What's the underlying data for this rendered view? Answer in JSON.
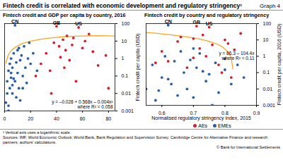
{
  "title": "Fintech credit is correlated with economic development and regulatory stringency¹",
  "graph_label": "Graph 4",
  "footnote": "¹ Vertical axis uses a logarithmic scale.",
  "sources": "Sources: IMF, World Economic Outlook; World Bank, Bank Regulation and Supervision Survey; Cambridge Centre for Alternative Finance and research partners; authors' calculations.",
  "copyright": "© Bank for International Settlements",
  "chart_data": [
    {
      "type": "scatter",
      "title": "Fintech credit and GDP per capita by country, 2016",
      "y_label": "Fintech credit per capita (USD)",
      "log": "y",
      "xlim": [
        0,
        85
      ],
      "xticks": [
        0,
        20,
        40,
        60,
        80
      ],
      "ylim": [
        0.001,
        100
      ],
      "yticks": [
        0.001,
        0.01,
        0.1,
        1,
        10,
        100
      ],
      "series": [
        {
          "name": "AEs",
          "color": "#d0202e",
          "marker": "circle",
          "x": [
            28,
            32,
            35,
            38,
            40,
            42,
            43,
            45,
            46,
            47,
            48,
            50,
            52,
            53,
            55,
            57,
            60,
            62,
            65,
            68,
            72,
            78,
            80,
            24,
            36
          ],
          "values": [
            0.5,
            2,
            0.2,
            8,
            70,
            5,
            1.2,
            12,
            0.3,
            3,
            20,
            0.8,
            6,
            15,
            0.05,
            60,
            4,
            10,
            25,
            2.5,
            0.4,
            1.5,
            0.02,
            0.1,
            0.01
          ]
        },
        {
          "name": "EMEs",
          "color": "#2a5da8",
          "marker": "circle",
          "x": [
            1,
            2,
            2,
            3,
            3,
            4,
            4,
            5,
            5,
            6,
            6,
            7,
            8,
            8,
            9,
            10,
            10,
            11,
            12,
            12,
            13,
            14,
            15,
            16,
            17,
            18,
            19,
            20,
            22,
            25,
            3,
            6,
            9,
            11,
            14,
            5,
            7
          ],
          "values": [
            0.003,
            0.01,
            0.05,
            0.002,
            0.2,
            0.02,
            0.5,
            0.08,
            1,
            0.01,
            0.3,
            2,
            80,
            0.05,
            0.6,
            0.15,
            3,
            0.02,
            0.8,
            0.004,
            1.5,
            0.1,
            5,
            0.3,
            0.04,
            1,
            8,
            0.5,
            2,
            0.2,
            0.001,
            0.03,
            0.006,
            4,
            0.02,
            0.15,
            0.07
          ]
        }
      ],
      "trend": {
        "type": "line",
        "color": "#f5a623",
        "x": [
          1,
          3,
          5,
          10,
          20,
          30,
          40,
          50,
          60,
          70,
          80,
          85
        ],
        "values": [
          0.536,
          1.64,
          2.71,
          5.25,
          9.73,
          13.41,
          16.29,
          18.37,
          19.65,
          20.13,
          19.81,
          19.33
        ]
      },
      "point_labels": [
        {
          "text": "CN",
          "x": 8,
          "y": 80
        },
        {
          "text": "GB",
          "x": 40,
          "y": 70
        },
        {
          "text": "US",
          "x": 57,
          "y": 60
        }
      ],
      "annotations": [
        "y = –0.028 + 0.568x – 0.004x²",
        "where R² = 0.058"
      ]
    },
    {
      "type": "scatter",
      "title": "Fintech credit by country and regulatory stringency",
      "x_label": "Normalised regulatory stringency index, 2015",
      "y_label": "Fintech credit per capita, 2016 (USD)",
      "log": "y",
      "legend": "bottom",
      "xlim": [
        0.55,
        0.9
      ],
      "xticks": [
        0.6,
        0.7,
        0.8,
        0.9
      ],
      "ylim": [
        0.001,
        100
      ],
      "yticks": [
        0.001,
        0.01,
        0.1,
        1,
        10,
        100
      ],
      "series": [
        {
          "name": "AEs",
          "color": "#d0202e",
          "marker": "circle",
          "x": [
            0.6,
            0.62,
            0.65,
            0.68,
            0.7,
            0.71,
            0.72,
            0.73,
            0.74,
            0.75,
            0.76,
            0.78,
            0.8,
            0.82,
            0.83,
            0.85,
            0.7,
            0.66,
            0.79,
            0.81,
            0.58
          ],
          "values": [
            2,
            0.5,
            8,
            0.2,
            12,
            70,
            3,
            20,
            1,
            60,
            5,
            0.3,
            10,
            0.05,
            2.5,
            25,
            0.8,
            15,
            0.1,
            6,
            0.4
          ]
        },
        {
          "name": "EMEs",
          "color": "#2a5da8",
          "marker": "circle",
          "x": [
            0.55,
            0.57,
            0.58,
            0.6,
            0.61,
            0.62,
            0.63,
            0.64,
            0.65,
            0.66,
            0.67,
            0.68,
            0.69,
            0.7,
            0.71,
            0.72,
            0.74,
            0.75,
            0.77,
            0.78,
            0.8,
            0.82,
            0.84,
            0.86,
            0.62,
            0.7,
            0.76,
            0.8,
            0.59,
            0.73
          ],
          "values": [
            0.01,
            0.3,
            0.002,
            0.05,
            1,
            80,
            0.02,
            0.5,
            0.004,
            2,
            0.1,
            0.01,
            0.6,
            0.003,
            0.2,
            1.5,
            0.03,
            0.08,
            0.4,
            0.006,
            0.15,
            0.02,
            0.3,
            0.05,
            0.04,
            3,
            0.001,
            0.7,
            0.008,
            0.12
          ]
        }
      ],
      "trend": {
        "type": "line",
        "color": "#f5a623",
        "x": [
          0.55,
          0.6,
          0.65,
          0.7,
          0.75,
          0.8,
          0.81,
          0.82,
          0.825
        ],
        "values": [
          28.88,
          23.66,
          18.44,
          13.22,
          8.0,
          2.78,
          1.736,
          0.692,
          0.17
        ]
      },
      "point_labels": [
        {
          "text": "CN",
          "x": 0.62,
          "y": 80
        },
        {
          "text": "GB",
          "x": 0.71,
          "y": 70
        },
        {
          "text": "US",
          "x": 0.75,
          "y": 60
        }
      ],
      "annotations": [
        "y = 86.3 – 104.4x",
        "where R² = 0.11"
      ]
    }
  ]
}
